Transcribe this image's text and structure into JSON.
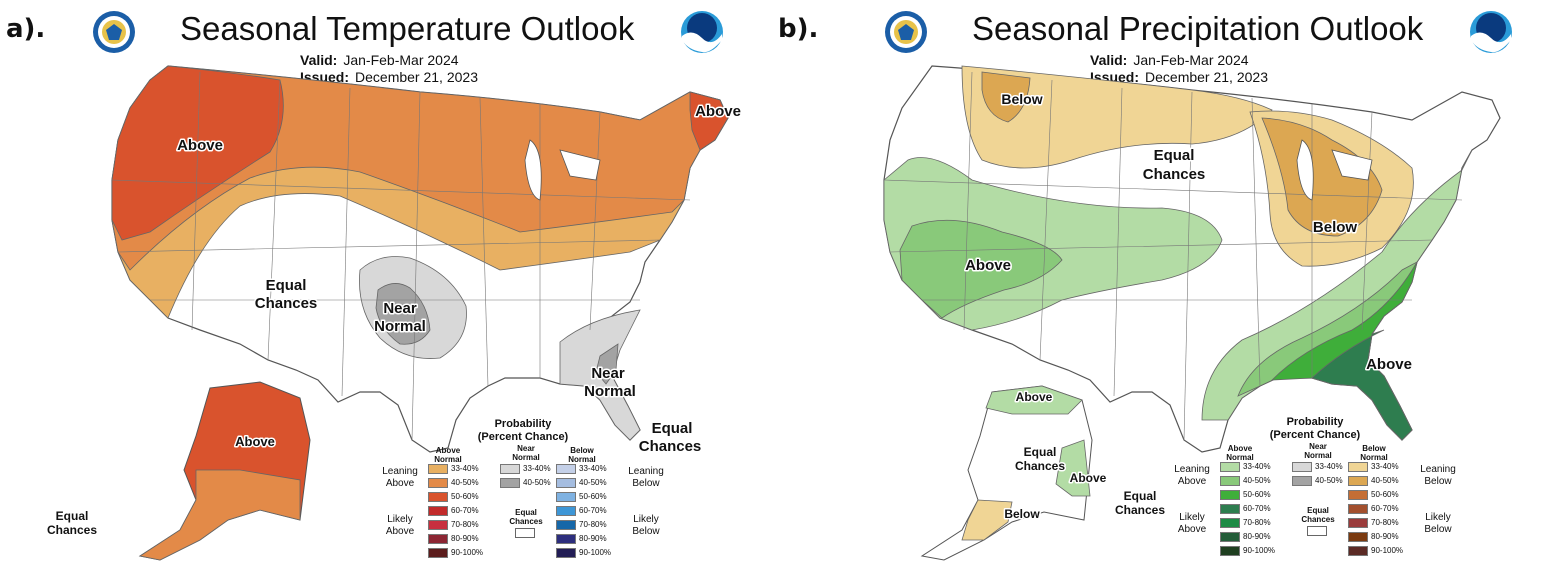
{
  "panels": [
    {
      "letter": "a).",
      "title": "Seasonal Temperature Outlook",
      "valid_label": "Valid:",
      "valid_value": "Jan-Feb-Mar 2024",
      "issued_label": "Issued:",
      "issued_value": "December 21, 2023",
      "regions": {
        "above_nw": "Above",
        "above_ne": "Above",
        "equal_1": "Equal",
        "equal_2": "Chances",
        "near_1": "Near",
        "near_2": "Normal",
        "near_se_1": "Near",
        "near_se_2": "Normal",
        "equal_fl_1": "Equal",
        "equal_fl_2": "Chances",
        "alaska_above": "Above",
        "alaska_equal_1": "Equal",
        "alaska_equal_2": "Chances"
      },
      "legend": {
        "title_1": "Probability",
        "title_2": "(Percent Chance)",
        "col_above": "Above Normal",
        "col_near": "Near Normal",
        "col_below": "Below Normal",
        "leaning_left": "Leaning Above",
        "likely_left": "Likely Above",
        "leaning_right": "Leaning Below",
        "likely_right": "Likely Below",
        "equal_chances": "Equal Chances",
        "ranges": [
          "33-40%",
          "40-50%",
          "50-60%",
          "60-70%",
          "70-80%",
          "80-90%",
          "90-100%"
        ],
        "near_ranges": [
          "33-40%",
          "40-50%"
        ],
        "above_colors": [
          "#e8b062",
          "#e38a48",
          "#d9532d",
          "#c22a2a",
          "#c8303f",
          "#8c2633",
          "#5b1c1c"
        ],
        "near_colors": [
          "#d8d8d8",
          "#a3a3a3"
        ],
        "below_colors": [
          "#c4d0e8",
          "#a5bde0",
          "#7fb2e2",
          "#3d96d6",
          "#1667a8",
          "#2d2e7d",
          "#221d55"
        ]
      }
    },
    {
      "letter": "b).",
      "title": "Seasonal Precipitation Outlook",
      "valid_label": "Valid:",
      "valid_value": "Jan-Feb-Mar 2024",
      "issued_label": "Issued:",
      "issued_value": "December 21, 2023",
      "regions": {
        "below_n": "Below",
        "equal_1": "Equal",
        "equal_2": "Chances",
        "below_gl": "Below",
        "above_w": "Above",
        "above_se": "Above",
        "alaska_above_n": "Above",
        "alaska_equal_1": "Equal",
        "alaska_equal_2": "Chances",
        "alaska_above_s": "Above",
        "alaska_equal_s_1": "Equal",
        "alaska_equal_s_2": "Chances",
        "alaska_below": "Below"
      },
      "legend": {
        "title_1": "Probability",
        "title_2": "(Percent Chance)",
        "col_above": "Above Normal",
        "col_near": "Near Normal",
        "col_below": "Below Normal",
        "leaning_left": "Leaning Above",
        "likely_left": "Likely Above",
        "leaning_right": "Leaning Below",
        "likely_right": "Likely Below",
        "equal_chances": "Equal Chances",
        "ranges": [
          "33-40%",
          "40-50%",
          "50-60%",
          "60-70%",
          "70-80%",
          "80-90%",
          "90-100%"
        ],
        "near_ranges": [
          "33-40%",
          "40-50%"
        ],
        "above_colors": [
          "#b3dca5",
          "#89c97a",
          "#3fae3a",
          "#2e7d4f",
          "#1e8c46",
          "#245e3a",
          "#1f3f20"
        ],
        "near_colors": [
          "#d8d8d8",
          "#a3a3a3"
        ],
        "below_colors": [
          "#f0d595",
          "#dca752",
          "#c46e35",
          "#a3502e",
          "#9a3b3b",
          "#7a3a10",
          "#5b2a25"
        ]
      }
    }
  ],
  "colors": {
    "temp_lean": "#e8b062",
    "temp_mod": "#e38a48",
    "temp_likely": "#d9532d",
    "near_lean": "#d8d8d8",
    "near_mod": "#a3a3a3",
    "precip_lean_wet": "#b3dca5",
    "precip_mod_wet": "#89c97a",
    "precip_likely_wet": "#3fae3a",
    "precip_vlikely_wet": "#2e7d4f",
    "precip_lean_dry": "#f0d595",
    "precip_mod_dry": "#dca752"
  }
}
